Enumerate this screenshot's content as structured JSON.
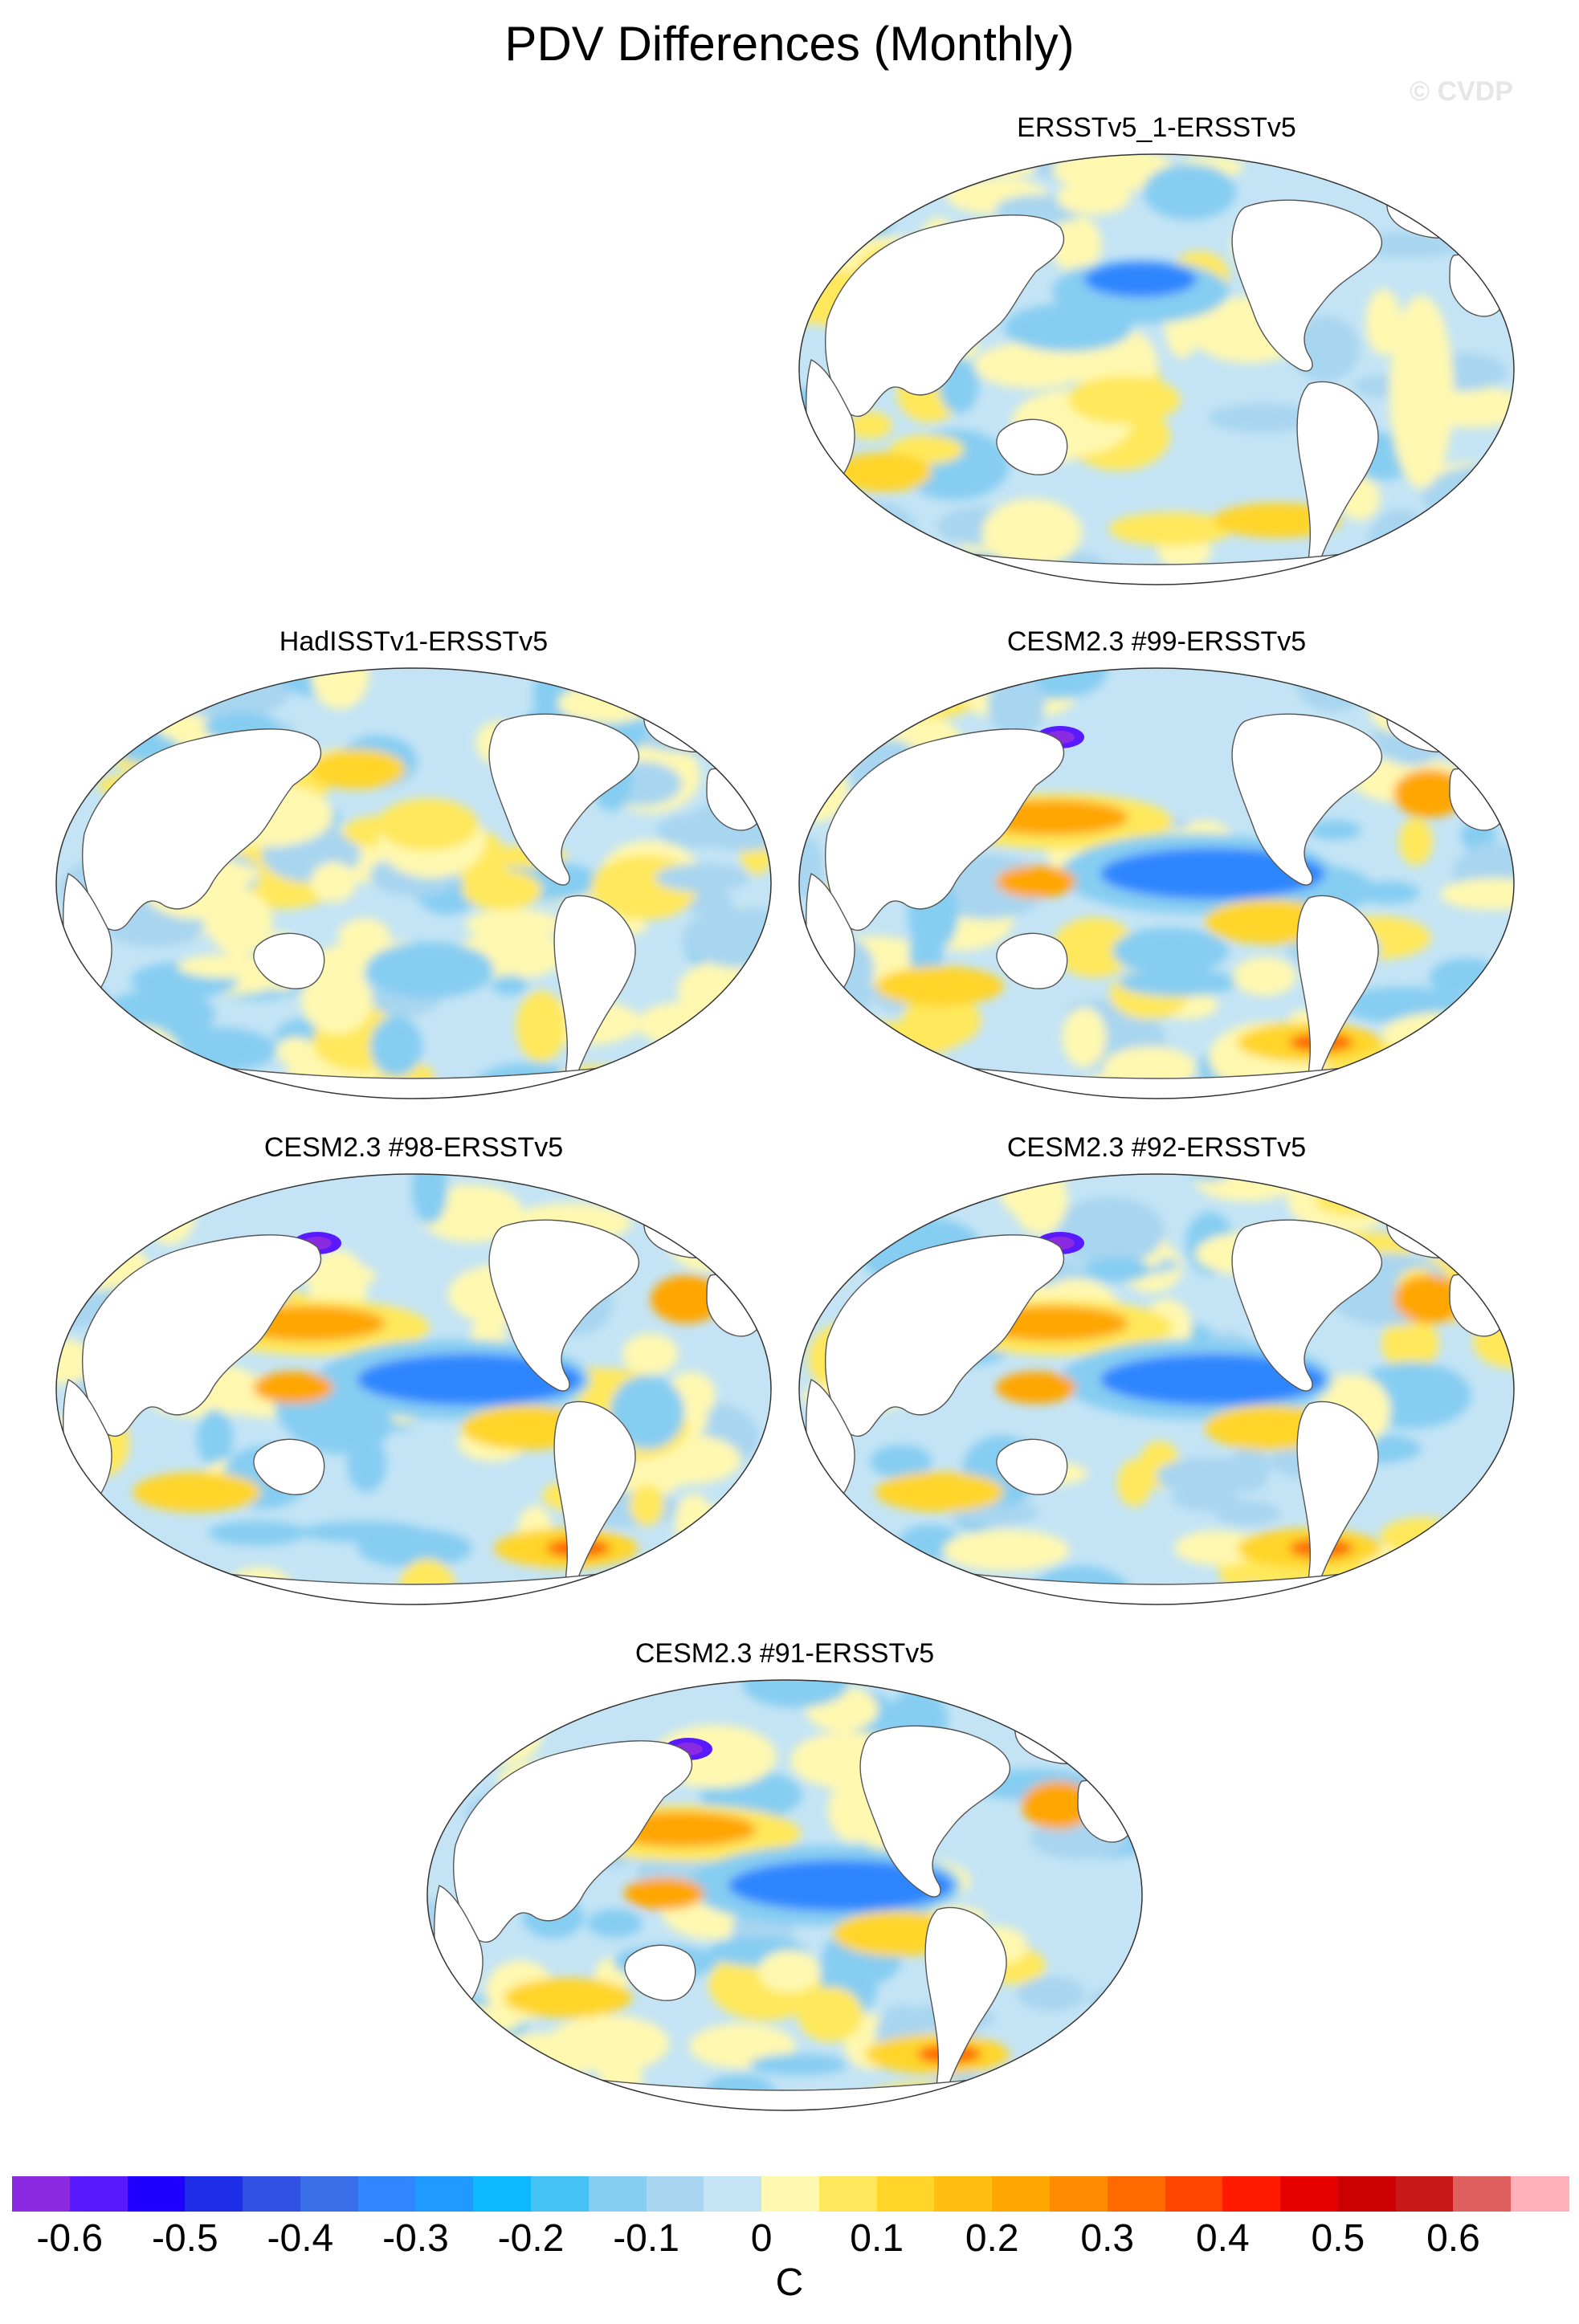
{
  "title": "PDV Differences (Monthly)",
  "watermark": "© CVDP",
  "panels": [
    {
      "title": "ERSSTv5_1-ERSSTv5",
      "pattern": "weak"
    },
    {
      "title": "HadISSTv1-ERSSTv5",
      "pattern": "noisy"
    },
    {
      "title": "CESM2.3 #99-ERSSTv5",
      "pattern": "strong"
    },
    {
      "title": "CESM2.3 #98-ERSSTv5",
      "pattern": "strong"
    },
    {
      "title": "CESM2.3 #92-ERSSTv5",
      "pattern": "strong"
    },
    {
      "title": "CESM2.3 #91-ERSSTv5",
      "pattern": "strong"
    }
  ],
  "colorbar": {
    "units": "C",
    "colors": [
      "#8a2be2",
      "#5a1aff",
      "#1f00ff",
      "#1e2ee6",
      "#2f50e0",
      "#3a6ee8",
      "#2f86ff",
      "#1f9bff",
      "#0fb9ff",
      "#46c3f5",
      "#86cdf2",
      "#a8d5f0",
      "#c4e4f5",
      "#fff8b0",
      "#ffe85c",
      "#ffd52a",
      "#ffbf10",
      "#ffa600",
      "#ff8a00",
      "#ff6a00",
      "#ff4500",
      "#ff1a00",
      "#e60000",
      "#cc0000",
      "#c91818",
      "#e06060",
      "#ffb0b8"
    ],
    "tick_labels": [
      "-0.6",
      "-0.5",
      "-0.4",
      "-0.3",
      "-0.2",
      "-0.1",
      "0",
      "0.1",
      "0.2",
      "0.3",
      "0.4",
      "0.5",
      "0.6"
    ]
  }
}
